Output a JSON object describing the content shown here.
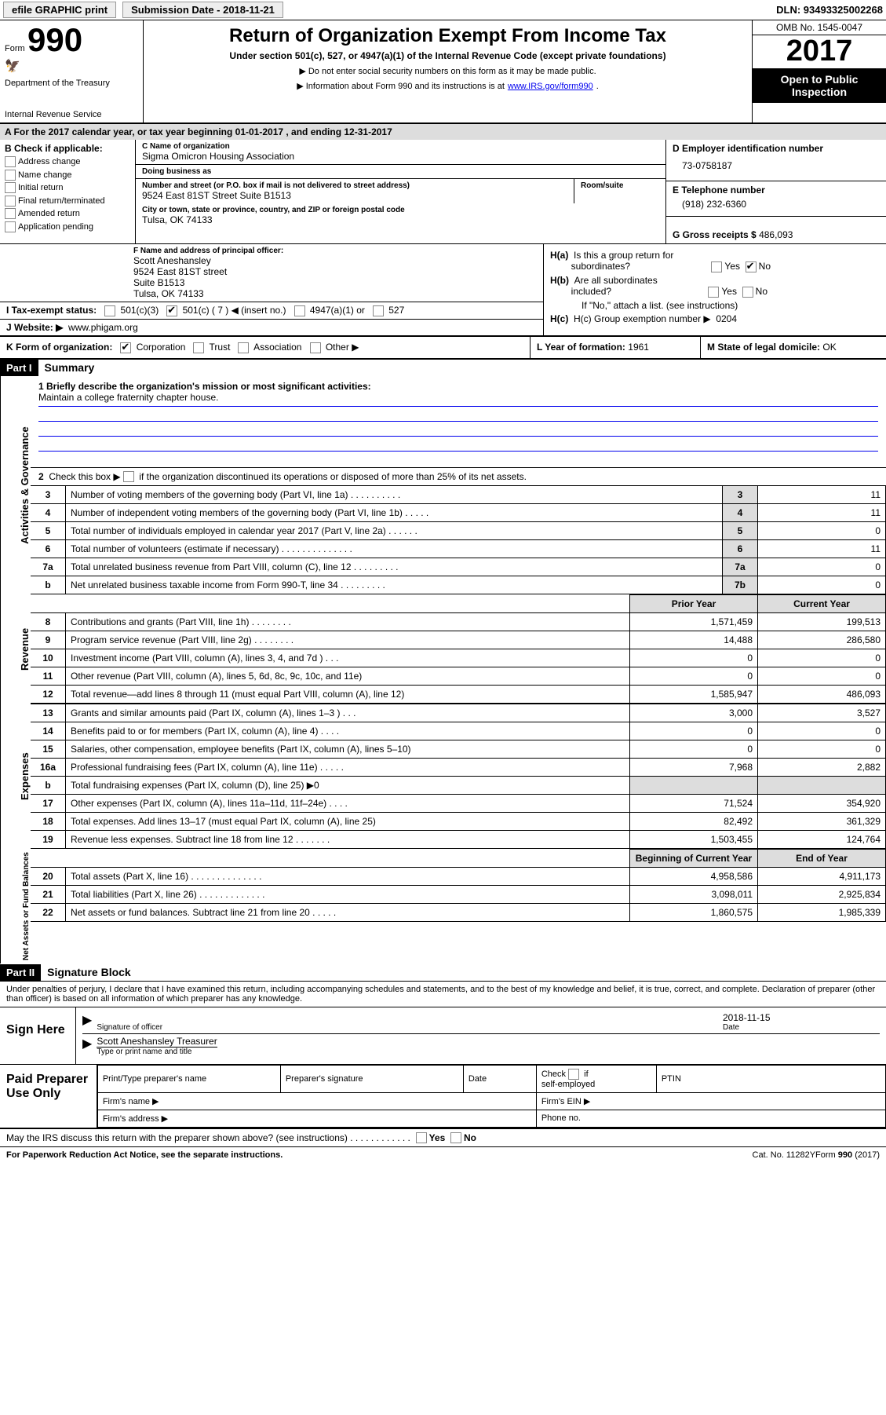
{
  "topbar": {
    "efile": "efile GRAPHIC print",
    "submission": "Submission Date - 2018-11-21",
    "dln": "DLN: 93493325002268"
  },
  "header": {
    "form": "Form",
    "n990": "990",
    "dept": "Department of the Treasury",
    "irs": "Internal Revenue Service",
    "title": "Return of Organization Exempt From Income Tax",
    "subtitle": "Under section 501(c), 527, or 4947(a)(1) of the Internal Revenue Code (except private foundations)",
    "note1": "▶ Do not enter social security numbers on this form as it may be made public.",
    "note2": "▶ Information about Form 990 and its instructions is at ",
    "note2_link": "www.IRS.gov/form990",
    "omb": "OMB No. 1545-0047",
    "year": "2017",
    "public": "Open to Public Inspection"
  },
  "rowA": "A  For the 2017 calendar year, or tax year beginning 01-01-2017   , and ending 12-31-2017",
  "colB": {
    "hdr": "B Check if applicable:",
    "items": [
      "Address change",
      "Name change",
      "Initial return",
      "Final return/terminated",
      "Amended return",
      "Application pending"
    ]
  },
  "colC": {
    "name_lbl": "C Name of organization",
    "name": "Sigma Omicron Housing Association",
    "dba_lbl": "Doing business as",
    "dba": "",
    "addr_lbl": "Number and street (or P.O. box if mail is not delivered to street address)",
    "room_lbl": "Room/suite",
    "addr": "9524 East 81ST Street Suite B1513",
    "city_lbl": "City or town, state or province, country, and ZIP or foreign postal code",
    "city": "Tulsa, OK  74133"
  },
  "colD": {
    "ein_lbl": "D Employer identification number",
    "ein": "73-0758187",
    "tel_lbl": "E Telephone number",
    "tel": "(918) 232-6360",
    "gross_lbl": "G Gross receipts $",
    "gross": "486,093"
  },
  "secF": {
    "lbl": "F Name and address of principal officer:",
    "lines": [
      "Scott Aneshansley",
      "9524 East 81ST street",
      "Suite B1513",
      "Tulsa, OK  74133"
    ]
  },
  "secH": {
    "ha": "H(a)  Is this a group return for subordinates?",
    "ha_yes": "Yes",
    "ha_no": "No",
    "hb": "H(b)  Are all subordinates included?",
    "hb_yes": "Yes",
    "hb_no": "No",
    "hb_note": "If \"No,\" attach a list. (see instructions)",
    "hc": "H(c)  Group exemption number ▶",
    "hc_val": "0204"
  },
  "secI": {
    "lbl": "I  Tax-exempt status:",
    "opts": [
      "501(c)(3)",
      "501(c) ( 7 ) ◀ (insert no.)",
      "4947(a)(1) or",
      "527"
    ]
  },
  "secJ": {
    "lbl": "J  Website: ▶",
    "val": "www.phigam.org"
  },
  "secK": {
    "lbl": "K Form of organization:",
    "opts": [
      "Corporation",
      "Trust",
      "Association",
      "Other ▶"
    ]
  },
  "secL": {
    "lbl": "L Year of formation:",
    "val": "1961"
  },
  "secM": {
    "lbl": "M State of legal domicile:",
    "val": "OK"
  },
  "part1": {
    "hdr": "Part I",
    "title": "Summary"
  },
  "mission": {
    "lbl": "1  Briefly describe the organization's mission or most significant activities:",
    "text": "Maintain a college fraternity chapter house."
  },
  "gov": {
    "side": "Activities & Governance",
    "line2": "2  Check this box ▶       if the organization discontinued its operations or disposed of more than 25% of its net assets.",
    "rows": [
      {
        "n": "3",
        "d": "Number of voting members of the governing body (Part VI, line 1a)  .   .   .   .   .   .   .   .   .   .",
        "l": "3",
        "v": "11"
      },
      {
        "n": "4",
        "d": "Number of independent voting members of the governing body (Part VI, line 1b)  .   .   .   .   .",
        "l": "4",
        "v": "11"
      },
      {
        "n": "5",
        "d": "Total number of individuals employed in calendar year 2017 (Part V, line 2a)  .   .   .   .   .   .",
        "l": "5",
        "v": "0"
      },
      {
        "n": "6",
        "d": "Total number of volunteers (estimate if necessary)   .   .   .   .   .   .   .   .   .   .   .   .   .   .",
        "l": "6",
        "v": "11"
      },
      {
        "n": "7a",
        "d": "Total unrelated business revenue from Part VIII, column (C), line 12  .   .   .   .   .   .   .   .   .",
        "l": "7a",
        "v": "0"
      },
      {
        "n": "b",
        "d": "Net unrelated business taxable income from Form 990-T, line 34   .   .   .   .   .   .   .   .   .",
        "l": "7b",
        "v": "0"
      }
    ]
  },
  "rev": {
    "side": "Revenue",
    "prior": "Prior Year",
    "curr": "Current Year",
    "rows": [
      {
        "n": "8",
        "d": "Contributions and grants (Part VIII, line 1h)   .   .   .   .   .   .   .   .",
        "p": "1,571,459",
        "c": "199,513"
      },
      {
        "n": "9",
        "d": "Program service revenue (Part VIII, line 2g)   .   .   .   .   .   .   .   .",
        "p": "14,488",
        "c": "286,580"
      },
      {
        "n": "10",
        "d": "Investment income (Part VIII, column (A), lines 3, 4, and 7d )   .   .   .",
        "p": "0",
        "c": "0"
      },
      {
        "n": "11",
        "d": "Other revenue (Part VIII, column (A), lines 5, 6d, 8c, 9c, 10c, and 11e)",
        "p": "0",
        "c": "0"
      },
      {
        "n": "12",
        "d": "Total revenue—add lines 8 through 11 (must equal Part VIII, column (A), line 12)",
        "p": "1,585,947",
        "c": "486,093"
      }
    ]
  },
  "exp": {
    "side": "Expenses",
    "rows": [
      {
        "n": "13",
        "d": "Grants and similar amounts paid (Part IX, column (A), lines 1–3 )  .   .   .",
        "p": "3,000",
        "c": "3,527"
      },
      {
        "n": "14",
        "d": "Benefits paid to or for members (Part IX, column (A), line 4)  .   .   .   .",
        "p": "0",
        "c": "0"
      },
      {
        "n": "15",
        "d": "Salaries, other compensation, employee benefits (Part IX, column (A), lines 5–10)",
        "p": "0",
        "c": "0"
      },
      {
        "n": "16a",
        "d": "Professional fundraising fees (Part IX, column (A), line 11e)   .   .   .   .   .",
        "p": "7,968",
        "c": "2,882"
      },
      {
        "n": "b",
        "d": "Total fundraising expenses (Part IX, column (D), line 25) ▶0",
        "p": "",
        "c": ""
      },
      {
        "n": "17",
        "d": "Other expenses (Part IX, column (A), lines 11a–11d, 11f–24e)  .   .   .   .",
        "p": "71,524",
        "c": "354,920"
      },
      {
        "n": "18",
        "d": "Total expenses. Add lines 13–17 (must equal Part IX, column (A), line 25)",
        "p": "82,492",
        "c": "361,329"
      },
      {
        "n": "19",
        "d": "Revenue less expenses. Subtract line 18 from line 12 .   .   .   .   .   .   .",
        "p": "1,503,455",
        "c": "124,764"
      }
    ]
  },
  "net": {
    "side": "Net Assets or Fund Balances",
    "begin": "Beginning of Current Year",
    "end": "End of Year",
    "rows": [
      {
        "n": "20",
        "d": "Total assets (Part X, line 16)  .   .   .   .   .   .   .   .   .   .   .   .   .   .",
        "p": "4,958,586",
        "c": "4,911,173"
      },
      {
        "n": "21",
        "d": "Total liabilities (Part X, line 26)  .   .   .   .   .   .   .   .   .   .   .   .   .",
        "p": "3,098,011",
        "c": "2,925,834"
      },
      {
        "n": "22",
        "d": "Net assets or fund balances. Subtract line 21 from line 20  .   .   .   .   .",
        "p": "1,860,575",
        "c": "1,985,339"
      }
    ]
  },
  "part2": {
    "hdr": "Part II",
    "title": "Signature Block"
  },
  "decl": "Under penalties of perjury, I declare that I have examined this return, including accompanying schedules and statements, and to the best of my knowledge and belief, it is true, correct, and complete. Declaration of preparer (other than officer) is based on all information of which preparer has any knowledge.",
  "sign": {
    "lab": "Sign Here",
    "sig_lbl": "Signature of officer",
    "date": "2018-11-15",
    "date_lbl": "Date",
    "name": "Scott Aneshansley Treasurer",
    "name_lbl": "Type or print name and title"
  },
  "prep": {
    "lab": "Paid Preparer Use Only",
    "c1": "Print/Type preparer's name",
    "c2": "Preparer's signature",
    "c3": "Date",
    "c4": "Check      if self-employed",
    "c5": "PTIN",
    "f1": "Firm's name   ▶",
    "f2": "Firm's EIN ▶",
    "f3": "Firm's address ▶",
    "f4": "Phone no."
  },
  "discuss": {
    "q": "May the IRS discuss this return with the preparer shown above? (see instructions)   .   .   .   .   .   .   .   .   .   .   .   .",
    "yes": "Yes",
    "no": "No"
  },
  "footer": {
    "left": "For Paperwork Reduction Act Notice, see the separate instructions.",
    "mid": "Cat. No. 11282Y",
    "right": "Form 990 (2017)"
  }
}
